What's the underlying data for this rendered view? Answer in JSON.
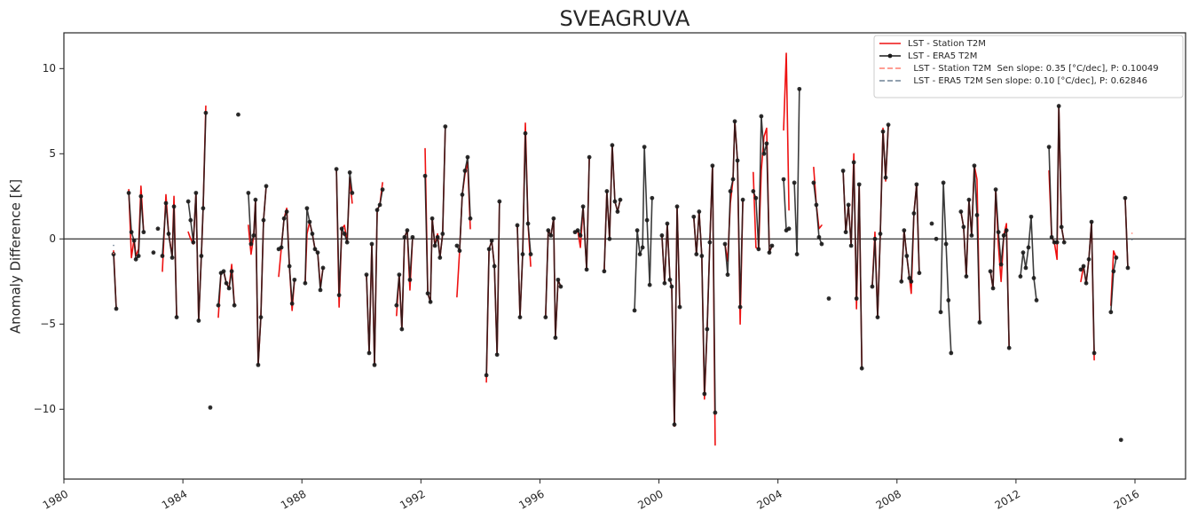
{
  "chart_data": {
    "type": "line",
    "title": "SVEAGRUVA",
    "y_label": "Anomaly Difference [K]",
    "xlim": [
      1980,
      2017.7
    ],
    "xticks": [
      1980,
      1984,
      1988,
      1992,
      1996,
      2000,
      2004,
      2008,
      2012,
      2016
    ],
    "ylim": [
      -14.1,
      12.1
    ],
    "yticks": [
      {
        "value": -10,
        "label": "−10"
      },
      {
        "value": -5,
        "label": "−5"
      },
      0,
      5,
      10
    ],
    "hline": 0,
    "legend": "upper right",
    "x": [
      1981.67,
      1981.76,
      1982.18,
      1982.27,
      1982.36,
      1982.42,
      1982.51,
      1982.59,
      1982.68,
      1983.01,
      1983.16,
      1983.31,
      1983.43,
      1983.52,
      1983.64,
      1983.7,
      1983.79,
      1984.18,
      1984.26,
      1984.35,
      1984.44,
      1984.53,
      1984.62,
      1984.68,
      1984.77,
      1984.92,
      1985.19,
      1985.28,
      1985.37,
      1985.46,
      1985.55,
      1985.64,
      1985.73,
      1985.86,
      1986.2,
      1986.29,
      1986.38,
      1986.44,
      1986.53,
      1986.62,
      1986.71,
      1986.8,
      1987.22,
      1987.31,
      1987.4,
      1987.49,
      1987.58,
      1987.67,
      1987.75,
      1988.11,
      1988.17,
      1988.26,
      1988.35,
      1988.44,
      1988.53,
      1988.62,
      1988.71,
      1989.16,
      1989.25,
      1989.34,
      1989.43,
      1989.52,
      1989.61,
      1989.69,
      1990.17,
      1990.26,
      1990.35,
      1990.44,
      1990.53,
      1990.62,
      1990.71,
      1991.18,
      1991.27,
      1991.36,
      1991.45,
      1991.54,
      1991.63,
      1991.72,
      1992.14,
      1992.23,
      1992.32,
      1992.38,
      1992.47,
      1992.56,
      1992.64,
      1992.73,
      1992.82,
      1993.21,
      1993.3,
      1993.39,
      1993.48,
      1993.57,
      1993.66,
      1994.2,
      1994.29,
      1994.38,
      1994.47,
      1994.56,
      1994.64,
      1995.24,
      1995.33,
      1995.42,
      1995.51,
      1995.6,
      1995.69,
      1996.19,
      1996.28,
      1996.37,
      1996.46,
      1996.52,
      1996.61,
      1996.7,
      1997.18,
      1997.27,
      1997.36,
      1997.45,
      1997.57,
      1997.66,
      1998.16,
      1998.25,
      1998.34,
      1998.43,
      1998.52,
      1998.61,
      1998.7,
      1999.18,
      1999.27,
      1999.36,
      1999.45,
      1999.51,
      1999.6,
      1999.69,
      1999.77,
      2000.1,
      2000.19,
      2000.28,
      2000.37,
      2000.43,
      2000.52,
      2000.61,
      2000.7,
      2001.17,
      2001.26,
      2001.35,
      2001.44,
      2001.53,
      2001.62,
      2001.71,
      2001.8,
      2001.89,
      2002.22,
      2002.31,
      2002.4,
      2002.49,
      2002.55,
      2002.64,
      2002.73,
      2002.82,
      2003.17,
      2003.26,
      2003.35,
      2003.44,
      2003.53,
      2003.62,
      2003.71,
      2003.8,
      2004.19,
      2004.28,
      2004.37,
      2004.55,
      2004.64,
      2004.72,
      2005.2,
      2005.29,
      2005.38,
      2005.47,
      2005.71,
      2006.19,
      2006.28,
      2006.37,
      2006.46,
      2006.55,
      2006.64,
      2006.73,
      2006.82,
      2007.17,
      2007.26,
      2007.35,
      2007.44,
      2007.53,
      2007.62,
      2007.71,
      2008.15,
      2008.24,
      2008.33,
      2008.42,
      2008.48,
      2008.57,
      2008.66,
      2008.75,
      2009.17,
      2009.32,
      2009.47,
      2009.56,
      2009.65,
      2009.73,
      2009.82,
      2010.15,
      2010.24,
      2010.33,
      2010.42,
      2010.51,
      2010.6,
      2010.69,
      2010.78,
      2011.14,
      2011.23,
      2011.32,
      2011.41,
      2011.5,
      2011.59,
      2011.68,
      2011.77,
      2012.15,
      2012.24,
      2012.33,
      2012.42,
      2012.51,
      2012.6,
      2012.69,
      2013.11,
      2013.2,
      2013.29,
      2013.38,
      2013.44,
      2013.53,
      2013.62,
      2014.18,
      2014.27,
      2014.36,
      2014.45,
      2014.54,
      2014.63,
      2015.19,
      2015.28,
      2015.37,
      2015.53,
      2015.67,
      2015.76
    ],
    "series": [
      {
        "name": "LST - Station T2M",
        "color": "#ee1111",
        "marker": false,
        "dashed": false,
        "values": [
          -0.7,
          -4.1,
          2.9,
          -1.1,
          0.0,
          -1.0,
          -0.6,
          3.1,
          0.4,
          -0.8,
          0.6,
          -1.9,
          2.6,
          0.3,
          -1.0,
          2.5,
          -4.6,
          0.4,
          0.0,
          -0.3,
          2.7,
          -4.8,
          -1.0,
          1.8,
          7.8,
          null,
          -4.6,
          -2.0,
          -1.9,
          -2.6,
          -2.9,
          -1.5,
          -3.9,
          null,
          0.8,
          -0.9,
          0.2,
          2.3,
          -7.4,
          -4.6,
          1.1,
          3.1,
          -2.2,
          -0.5,
          1.2,
          1.8,
          -1.6,
          -4.2,
          -2.4,
          -2.6,
          0.3,
          1.0,
          0.3,
          -0.6,
          -0.8,
          -2.8,
          -1.7,
          4.1,
          -4.0,
          0.6,
          0.8,
          -0.2,
          3.6,
          2.1,
          -2.1,
          -6.7,
          -0.3,
          -7.4,
          1.7,
          2.0,
          3.3,
          -4.5,
          -2.1,
          -5.3,
          0.1,
          0.5,
          -3.0,
          0.1,
          5.3,
          -3.2,
          -3.7,
          1.2,
          -0.4,
          0.3,
          -1.1,
          0.3,
          6.6,
          -3.4,
          -0.7,
          2.6,
          3.8,
          4.5,
          0.6,
          -8.4,
          -0.6,
          -0.1,
          -1.6,
          -6.8,
          2.2,
          0.8,
          -4.6,
          -0.9,
          6.8,
          0.9,
          -1.6,
          -4.6,
          0.5,
          0.2,
          1.2,
          -5.8,
          -2.4,
          -2.8,
          0.4,
          0.5,
          -0.5,
          1.9,
          -1.8,
          4.8,
          -1.9,
          2.8,
          0.0,
          5.5,
          2.2,
          1.6,
          2.3,
          null,
          null,
          null,
          null,
          null,
          null,
          null,
          null,
          0.2,
          -2.6,
          0.9,
          -2.4,
          -2.8,
          -11.0,
          1.9,
          -4.0,
          1.3,
          -0.9,
          1.6,
          -1.0,
          -9.4,
          -5.3,
          -0.2,
          4.3,
          -12.1,
          -0.3,
          -1.3,
          2.1,
          3.5,
          6.9,
          4.6,
          -5.0,
          2.3,
          3.9,
          -0.5,
          -0.6,
          4.0,
          6.0,
          6.5,
          -0.8,
          -0.4,
          6.4,
          10.9,
          1.7,
          null,
          null,
          null,
          4.2,
          2.0,
          0.6,
          0.8,
          null,
          4.0,
          0.4,
          2.0,
          -0.4,
          5.0,
          -4.1,
          3.2,
          -7.6,
          -2.8,
          0.4,
          -4.6,
          0.3,
          6.5,
          3.4,
          6.7,
          -2.5,
          0.5,
          -1.0,
          -2.3,
          -3.2,
          1.5,
          3.2,
          -2.0,
          null,
          null,
          null,
          null,
          null,
          null,
          null,
          1.6,
          0.7,
          -2.2,
          2.3,
          0.2,
          4.3,
          3.5,
          -4.9,
          -1.9,
          -2.9,
          2.9,
          -0.4,
          -2.5,
          0.2,
          0.9,
          -6.4,
          null,
          null,
          null,
          null,
          null,
          null,
          null,
          4.0,
          0.1,
          -0.2,
          -1.2,
          7.8,
          0.7,
          -0.2,
          -2.5,
          -1.6,
          -2.6,
          -1.2,
          1.0,
          -7.1,
          -3.9,
          -0.7,
          -1.1,
          null,
          2.4,
          -1.7
        ]
      },
      {
        "name": "LST - ERA5 T2M",
        "color": "#1a1a1a",
        "marker": true,
        "dashed": false,
        "values": [
          -0.9,
          -4.1,
          2.7,
          0.4,
          -0.1,
          -1.2,
          -1.0,
          2.5,
          0.4,
          -0.8,
          0.6,
          -1.0,
          2.1,
          0.3,
          -1.1,
          1.9,
          -4.6,
          2.2,
          1.1,
          -0.2,
          2.7,
          -4.8,
          -1.0,
          1.8,
          7.4,
          -9.9,
          -3.9,
          -2.0,
          -1.9,
          -2.6,
          -2.9,
          -1.9,
          -3.9,
          7.3,
          2.7,
          -0.3,
          0.2,
          2.3,
          -7.4,
          -4.6,
          1.1,
          3.1,
          -0.6,
          -0.5,
          1.2,
          1.6,
          -1.6,
          -3.8,
          -2.4,
          -2.6,
          1.8,
          1.0,
          0.3,
          -0.6,
          -0.8,
          -3.0,
          -1.7,
          4.1,
          -3.3,
          0.6,
          0.3,
          -0.2,
          3.9,
          2.7,
          -2.1,
          -6.7,
          -0.3,
          -7.4,
          1.7,
          2.0,
          2.9,
          -3.9,
          -2.1,
          -5.3,
          0.1,
          0.5,
          -2.4,
          0.1,
          3.7,
          -3.2,
          -3.7,
          1.2,
          -0.4,
          0.1,
          -1.1,
          0.3,
          6.6,
          -0.4,
          -0.7,
          2.6,
          4.0,
          4.8,
          1.2,
          -8.0,
          -0.6,
          -0.1,
          -1.6,
          -6.8,
          2.2,
          0.8,
          -4.6,
          -0.9,
          6.2,
          0.9,
          -0.9,
          -4.6,
          0.5,
          0.2,
          1.2,
          -5.8,
          -2.4,
          -2.8,
          0.4,
          0.5,
          0.2,
          1.9,
          -1.8,
          4.8,
          -1.9,
          2.8,
          0.0,
          5.5,
          2.2,
          1.6,
          2.3,
          -4.2,
          0.5,
          -0.9,
          -0.5,
          5.4,
          1.1,
          -2.7,
          2.4,
          0.2,
          -2.6,
          0.9,
          -2.4,
          -2.8,
          -10.9,
          1.9,
          -4.0,
          1.3,
          -0.9,
          1.6,
          -1.0,
          -9.1,
          -5.3,
          -0.2,
          4.3,
          -10.2,
          -0.3,
          -2.1,
          2.8,
          3.5,
          6.9,
          4.6,
          -4.0,
          2.3,
          2.8,
          2.4,
          -0.6,
          7.2,
          5.0,
          5.6,
          -0.8,
          -0.4,
          3.5,
          0.5,
          0.6,
          3.3,
          -0.9,
          8.8,
          3.3,
          2.0,
          0.1,
          -0.3,
          -3.5,
          4.0,
          0.4,
          2.0,
          -0.4,
          4.5,
          -3.5,
          3.2,
          -7.6,
          -2.8,
          0.0,
          -4.6,
          0.3,
          6.3,
          3.6,
          6.7,
          -2.5,
          0.5,
          -1.0,
          -2.3,
          -2.5,
          1.5,
          3.2,
          -2.0,
          0.9,
          0.0,
          -4.3,
          3.3,
          -0.3,
          -3.6,
          -6.7,
          1.6,
          0.7,
          -2.2,
          2.3,
          0.2,
          4.3,
          1.4,
          -4.9,
          -1.9,
          -2.9,
          2.9,
          0.4,
          -1.5,
          0.2,
          0.5,
          -6.4,
          -2.2,
          -0.8,
          -1.7,
          -0.5,
          1.3,
          -2.3,
          -3.6,
          5.4,
          0.1,
          -0.2,
          -0.2,
          7.8,
          0.7,
          -0.2,
          -1.8,
          -1.6,
          -2.6,
          -1.2,
          1.0,
          -6.7,
          -4.3,
          -1.9,
          -1.1,
          -11.8,
          2.4,
          -1.7
        ]
      },
      {
        "name": "  LST - Station T2M  Sen slope: 0.35 [°C/dec], P: 0.10049",
        "color": "#ff7f70",
        "marker": false,
        "dashed": true,
        "x": [
          1981.67,
          2015.9
        ],
        "values": [
          -0.85,
          0.33
        ]
      },
      {
        "name": "  LST - ERA5 T2M Sen slope: 0.10 [°C/dec], P: 0.62846",
        "color": "#6f8295",
        "marker": false,
        "dashed": true,
        "x": [
          1981.67,
          2015.9
        ],
        "values": [
          -0.38,
          -0.04
        ]
      }
    ]
  }
}
